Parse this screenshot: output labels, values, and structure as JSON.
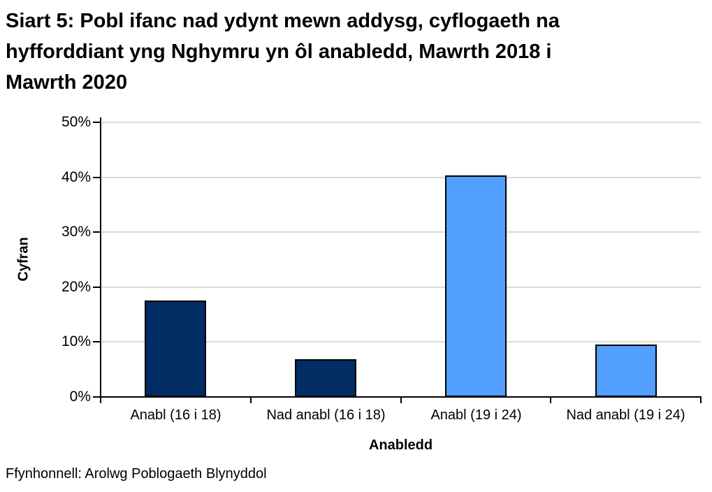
{
  "title_lines": [
    "Siart 5: Pobl ifanc nad ydynt mewn addysg, cyflogaeth na",
    "hyfforddiant yng Nghymru yn ôl anabledd, Mawrth 2018 i",
    "Mawrth 2020"
  ],
  "source": "Ffynhonnell: Arolwg Poblogaeth Blynyddol",
  "chart_data": {
    "type": "bar",
    "title": "Siart 5: Pobl ifanc nad ydynt mewn addysg, cyflogaeth na hyfforddiant yng Nghymru yn ôl anabledd, Mawrth 2018 i Mawrth 2020",
    "categories": [
      "Anabl (16 i 18)",
      "Nad anabl (16 i 18)",
      "Anabl (19 i 24)",
      "Nad anabl (19 i 24)"
    ],
    "values": [
      17.6,
      6.9,
      40.3,
      9.6
    ],
    "xlabel": "Anabledd",
    "ylabel": "Cyfran",
    "ylim": [
      0,
      50
    ],
    "ytick_step": 10,
    "ytick_labels": [
      "0%",
      "10%",
      "20%",
      "30%",
      "40%",
      "50%"
    ],
    "grid": true,
    "legend_position": "none",
    "bar_colors": [
      "#002d64",
      "#002d64",
      "#529fff",
      "#529fff"
    ],
    "bar_border_color": "#000000",
    "gridline_color": "#d9d9d9",
    "axis_color": "#000000",
    "text_color": "#000000"
  }
}
